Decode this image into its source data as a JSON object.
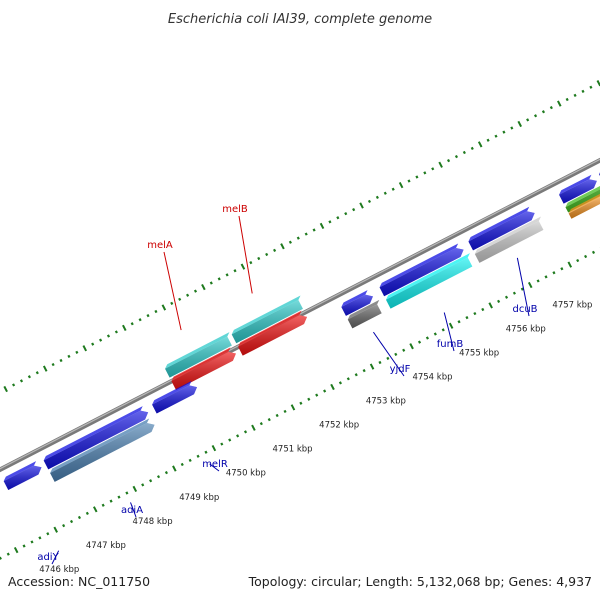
{
  "title": "Escherichia coli IAI39, complete genome",
  "footer": {
    "accession": "Accession: NC_011750",
    "summary": "Topology: circular; Length: 5,132,068 bp; Genes: 4,937"
  },
  "colors": {
    "backbone": "#8a8a8a",
    "tick": "#1e7a1e",
    "label_top": "#cc0000",
    "label_bottom": "#0000aa",
    "blue": "#1010e0",
    "cyan": "#2cc8c8",
    "red": "#ee1010",
    "steel": "#4a7fb0",
    "gray": "#666666",
    "lightgray": "#c8c8c8",
    "aqua": "#10f0f0",
    "green": "#44bb22",
    "orange": "#f09020"
  },
  "kbp_labels": [
    "4746 kbp",
    "4747 kbp",
    "4748 kbp",
    "4749 kbp",
    "4750 kbp",
    "4751 kbp",
    "4752 kbp",
    "4753 kbp",
    "4754 kbp",
    "4755 kbp",
    "4756 kbp",
    "4757 kbp"
  ],
  "genes_top": [
    {
      "name": "melA",
      "fill": "cyan"
    },
    {
      "name": "melB",
      "fill": "cyan"
    },
    {
      "name": "",
      "fill": "red"
    },
    {
      "name": "",
      "fill": "red"
    }
  ],
  "genes_bottom": [
    {
      "name": "adiY",
      "fill": "blue"
    },
    {
      "name": "adiA",
      "fill": "blue"
    },
    {
      "name": "",
      "fill": "steel"
    },
    {
      "name": "melR",
      "fill": "blue"
    },
    {
      "name": "yjdF",
      "fill": "blue"
    },
    {
      "name": "",
      "fill": "gray"
    },
    {
      "name": "fumB",
      "fill": "blue"
    },
    {
      "name": "",
      "fill": "aqua"
    },
    {
      "name": "dcuB",
      "fill": "blue"
    },
    {
      "name": "",
      "fill": "lightgray"
    },
    {
      "name": "",
      "fill": "blue"
    },
    {
      "name": "",
      "fill": "green"
    },
    {
      "name": "",
      "fill": "orange"
    }
  ]
}
